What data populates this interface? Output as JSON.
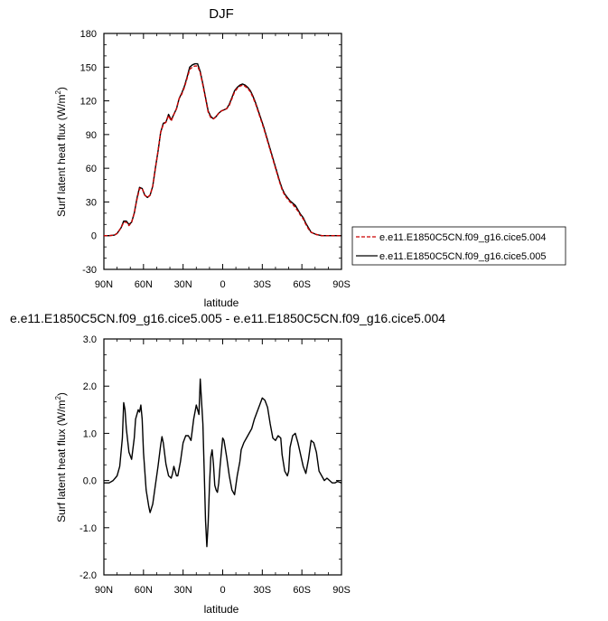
{
  "chart_data": [
    {
      "type": "line",
      "title": "DJF",
      "xlabel": "latitude",
      "ylabel": "Surf latent heat flux (W/m",
      "ylabel_sup": "2",
      "ylabel_end": ")",
      "xlim": [
        90,
        -90
      ],
      "ylim": [
        -30,
        180
      ],
      "yticks": [
        "-30",
        "0",
        "30",
        "60",
        "90",
        "120",
        "150",
        "180"
      ],
      "xticks": [
        "90N",
        "60N",
        "30N",
        "0",
        "30S",
        "60S",
        "90S"
      ],
      "series": [
        {
          "name": "e.e11.E1850C5CN.f09_g16.cice5.004",
          "color": "#cc0000",
          "dash": "dashed",
          "x": [
            90,
            86,
            82,
            80,
            77,
            75,
            73,
            71,
            69,
            67,
            65,
            63,
            61,
            59,
            57,
            55,
            53,
            51,
            49,
            47,
            45,
            43,
            41,
            39,
            37,
            35,
            33,
            31,
            29,
            27,
            25,
            23,
            21,
            19,
            17,
            15,
            13,
            11,
            9,
            7,
            5,
            3,
            1,
            -1,
            -3,
            -5,
            -7,
            -9,
            -11,
            -13,
            -15,
            -17,
            -19,
            -21,
            -23,
            -25,
            -27,
            -29,
            -31,
            -33,
            -35,
            -37,
            -39,
            -41,
            -43,
            -45,
            -47,
            -49,
            -51,
            -53,
            -55,
            -57,
            -59,
            -61,
            -63,
            -65,
            -67,
            -69,
            -71,
            -73,
            -75,
            -77,
            -79,
            -82,
            -86,
            -90
          ],
          "y": [
            0,
            0,
            0.5,
            2,
            7,
            12,
            12,
            9,
            12,
            20,
            32,
            42,
            42,
            36,
            34,
            36,
            44,
            60,
            75,
            92,
            99,
            101,
            107,
            102,
            108,
            113,
            122,
            126,
            132,
            140,
            148,
            150,
            151,
            151,
            145,
            134,
            122,
            110,
            105,
            104,
            106,
            109,
            111,
            112,
            113,
            116,
            122,
            128,
            131,
            133,
            134,
            133,
            131,
            128,
            123,
            117,
            110,
            103,
            96,
            88,
            80,
            72,
            64,
            56,
            48,
            41,
            36,
            33,
            30,
            28,
            25,
            22,
            18,
            15,
            10,
            6,
            3,
            2,
            1,
            0.5,
            0,
            0,
            0,
            0,
            0,
            0
          ]
        },
        {
          "name": "e.e11.E1850C5CN.f09_g16.cice5.005",
          "color": "#000000",
          "dash": "solid",
          "x": [
            90,
            86,
            82,
            80,
            77,
            75,
            73,
            71,
            69,
            67,
            65,
            63,
            61,
            59,
            57,
            55,
            53,
            51,
            49,
            47,
            45,
            43,
            41,
            39,
            37,
            35,
            33,
            31,
            29,
            27,
            25,
            23,
            21,
            19,
            17,
            15,
            13,
            11,
            9,
            7,
            5,
            3,
            1,
            -1,
            -3,
            -5,
            -7,
            -9,
            -11,
            -13,
            -15,
            -17,
            -19,
            -21,
            -23,
            -25,
            -27,
            -29,
            -31,
            -33,
            -35,
            -37,
            -39,
            -41,
            -43,
            -45,
            -47,
            -49,
            -51,
            -53,
            -55,
            -57,
            -59,
            -61,
            -63,
            -65,
            -67,
            -69,
            -71,
            -73,
            -75,
            -77,
            -79,
            -82,
            -86,
            -90
          ],
          "y": [
            0,
            0,
            0.5,
            2,
            7,
            13,
            13,
            10,
            12,
            20,
            33,
            43,
            42,
            36,
            34,
            36,
            44,
            60,
            75,
            92,
            100,
            101,
            108,
            103,
            108,
            113,
            122,
            127,
            133,
            141,
            150,
            152,
            153,
            153,
            146,
            135,
            123,
            111,
            106,
            104,
            106,
            109,
            111,
            112,
            113,
            117,
            123,
            129,
            132,
            134,
            135,
            134,
            132,
            129,
            124,
            118,
            111,
            104,
            97,
            89,
            81,
            73,
            65,
            57,
            49,
            42,
            37,
            34,
            31,
            29,
            27,
            23,
            19,
            16,
            11,
            7,
            3,
            2,
            1,
            0.5,
            0,
            0,
            0,
            0,
            0,
            0
          ]
        }
      ]
    },
    {
      "type": "line",
      "title": "e.e11.E1850C5CN.f09_g16.cice5.005 - e.e11.E1850C5CN.f09_g16.cice5.004",
      "xlabel": "latitude",
      "ylabel": "Surf latent heat flux (W/m",
      "ylabel_sup": "2",
      "ylabel_end": ")",
      "xlim": [
        90,
        -90
      ],
      "ylim": [
        -2.0,
        3.0
      ],
      "yticks": [
        "-2.0",
        "-1.0",
        "0.0",
        "1.0",
        "2.0",
        "3.0"
      ],
      "xticks": [
        "90N",
        "60N",
        "30N",
        "0",
        "30S",
        "60S",
        "90S"
      ],
      "series": [
        {
          "name": "",
          "color": "#000000",
          "dash": "solid",
          "x": [
            90,
            86,
            83,
            80,
            78,
            76,
            75,
            74,
            73,
            71,
            69,
            67,
            66,
            64,
            63,
            62,
            61,
            60,
            58,
            56,
            55,
            53,
            51,
            49,
            47,
            46,
            45,
            43,
            41,
            39,
            38,
            37,
            36,
            35,
            34,
            33,
            32,
            30,
            28,
            26,
            24,
            22,
            20,
            18,
            17,
            15,
            14,
            13,
            12,
            11,
            10,
            9,
            8,
            7,
            6,
            5,
            4,
            3,
            2,
            1,
            0,
            -1,
            -3,
            -5,
            -7,
            -9,
            -11,
            -13,
            -14,
            -16,
            -18,
            -20,
            -22,
            -24,
            -26,
            -28,
            -30,
            -32,
            -34,
            -36,
            -38,
            -40,
            -42,
            -44,
            -45,
            -47,
            -49,
            -50,
            -51,
            -53,
            -55,
            -57,
            -59,
            -61,
            -63,
            -65,
            -67,
            -69,
            -71,
            -73,
            -75,
            -77,
            -79,
            -81,
            -83,
            -85,
            -87,
            -90
          ],
          "y": [
            -0.05,
            -0.05,
            0.0,
            0.1,
            0.3,
            0.9,
            1.65,
            1.5,
            1.1,
            0.6,
            0.45,
            0.9,
            1.3,
            1.5,
            1.45,
            1.6,
            1.3,
            0.6,
            -0.2,
            -0.55,
            -0.68,
            -0.5,
            -0.1,
            0.3,
            0.75,
            0.93,
            0.8,
            0.35,
            0.1,
            0.05,
            0.15,
            0.3,
            0.2,
            0.1,
            0.1,
            0.25,
            0.4,
            0.8,
            0.95,
            0.95,
            0.85,
            1.3,
            1.6,
            1.4,
            2.15,
            1.2,
            0.2,
            -0.85,
            -1.4,
            -0.9,
            -0.1,
            0.5,
            0.65,
            0.35,
            -0.1,
            -0.2,
            -0.25,
            -0.05,
            0.3,
            0.6,
            0.9,
            0.85,
            0.5,
            0.1,
            -0.2,
            -0.3,
            0.1,
            0.4,
            0.65,
            0.8,
            0.9,
            1.0,
            1.1,
            1.3,
            1.45,
            1.6,
            1.75,
            1.7,
            1.55,
            1.2,
            0.9,
            0.85,
            0.95,
            0.9,
            0.55,
            0.2,
            0.1,
            0.2,
            0.7,
            0.95,
            1.0,
            0.8,
            0.55,
            0.3,
            0.15,
            0.45,
            0.85,
            0.8,
            0.6,
            0.2,
            0.1,
            0.0,
            0.05,
            0.0,
            -0.05,
            -0.05,
            -0.02,
            -0.05
          ]
        }
      ]
    }
  ]
}
